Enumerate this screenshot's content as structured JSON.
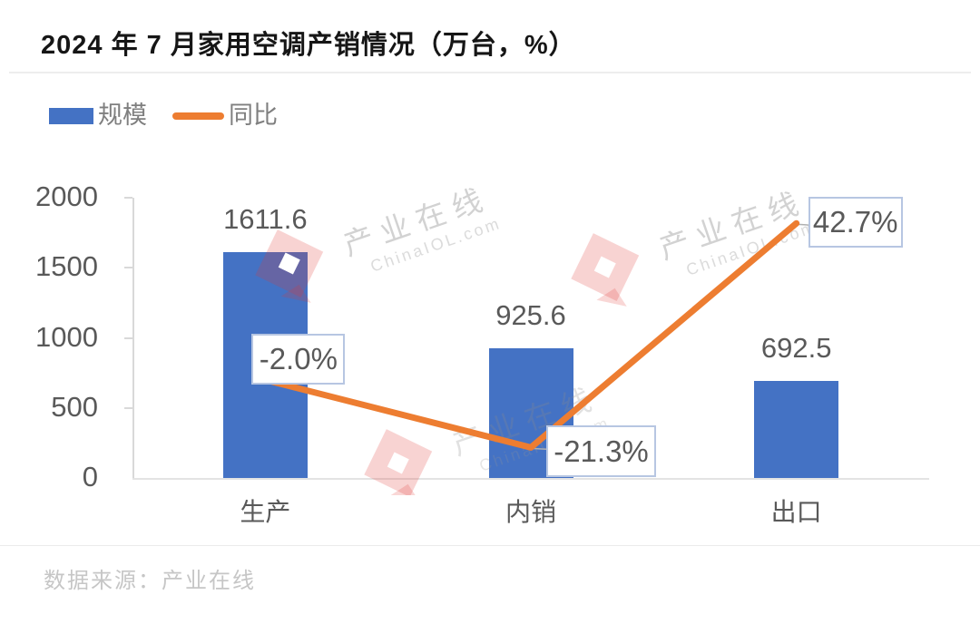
{
  "title": "2024 年 7 月家用空调产销情况（万台，%）",
  "legend": {
    "bar_label": "规模",
    "line_label": "同比"
  },
  "watermark": {
    "cn": "产业在线",
    "en": "ChinaIOL.com"
  },
  "footer": {
    "source": "数据来源：产业在线"
  },
  "colors": {
    "bar": "#4472c4",
    "line": "#ed7d31",
    "axis": "#d9d9d9",
    "text_gray": "#595959",
    "callout_border": "#b7c6e2",
    "watermark_red": "#e13730"
  },
  "chart_data": {
    "type": "bar",
    "combo": "bar+line",
    "title": "2024 年 7 月家用空调产销情况（万台，%）",
    "categories": [
      "生产",
      "内销",
      "出口"
    ],
    "series": [
      {
        "name": "规模",
        "type": "bar",
        "values": [
          1611.6,
          925.6,
          692.5
        ],
        "labels": [
          "1611.6",
          "925.6",
          "692.5"
        ]
      },
      {
        "name": "同比",
        "type": "line",
        "values": [
          -2.0,
          -21.3,
          42.7
        ],
        "labels": [
          "-2.0%",
          "-21.3%",
          "42.7%"
        ]
      }
    ],
    "xlabel": "",
    "ylabel": "",
    "ylim": [
      0,
      2000
    ],
    "yticks": [
      0,
      500,
      1000,
      1500,
      2000
    ],
    "y2lim": [
      -30,
      50
    ],
    "grid": false,
    "legend_position": "top-left"
  }
}
